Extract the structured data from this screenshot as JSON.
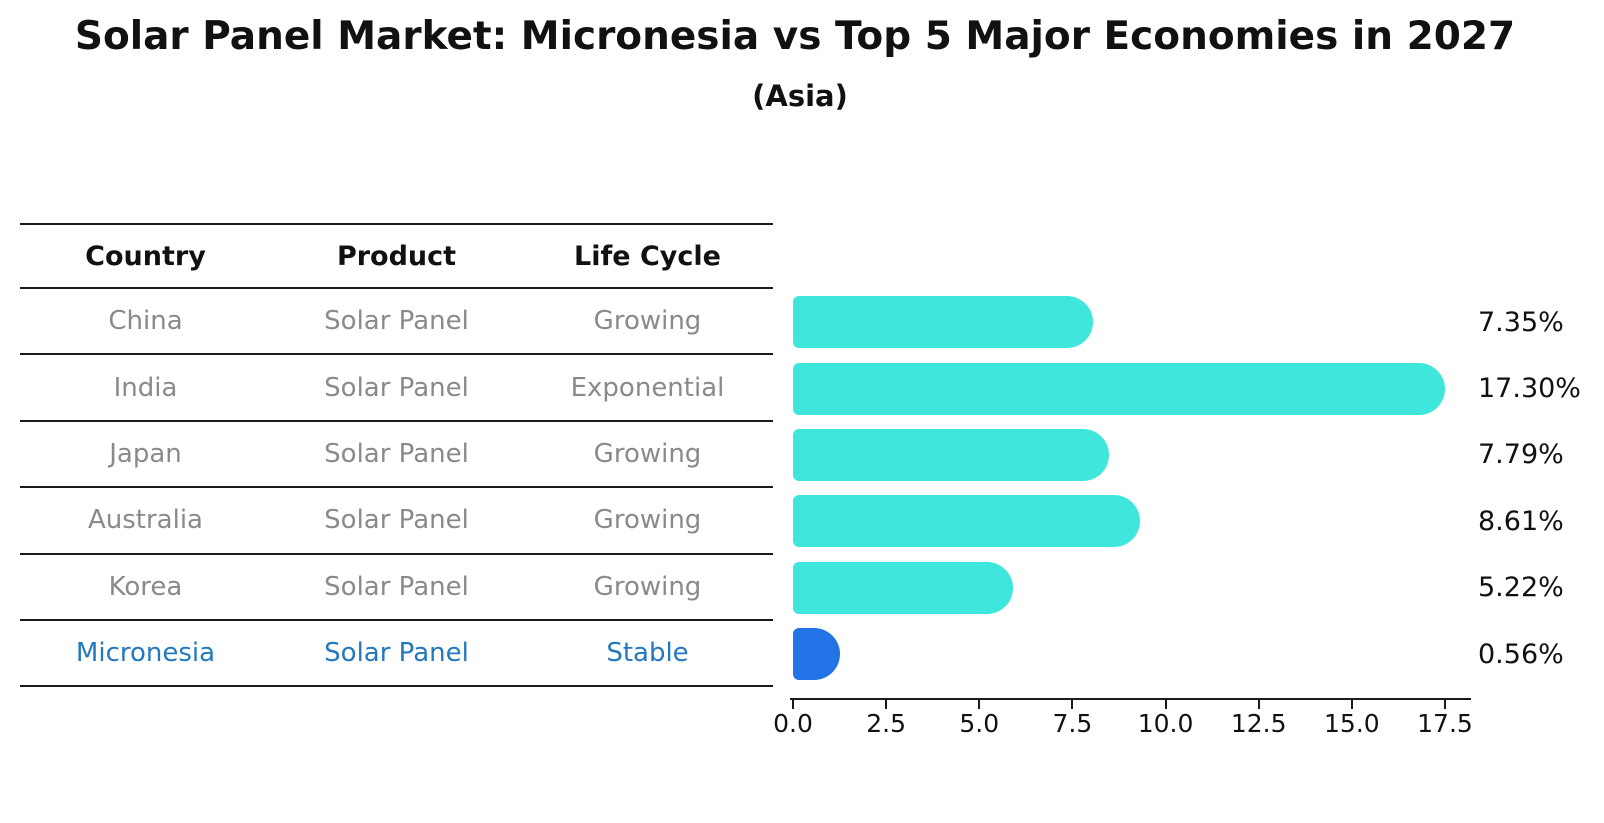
{
  "title": "Solar Panel Market: Micronesia vs Top 5 Major Economies in 2027",
  "subtitle": "(Asia)",
  "table": {
    "headers": [
      "Country",
      "Product",
      "Life Cycle"
    ],
    "rows": [
      {
        "country": "China",
        "product": "Solar Panel",
        "life_cycle": "Growing",
        "highlighted": false
      },
      {
        "country": "India",
        "product": "Solar Panel",
        "life_cycle": "Exponential",
        "highlighted": false
      },
      {
        "country": "Japan",
        "product": "Solar Panel",
        "life_cycle": "Growing",
        "highlighted": false
      },
      {
        "country": "Australia",
        "product": "Solar Panel",
        "life_cycle": "Growing",
        "highlighted": false
      },
      {
        "country": "Korea",
        "product": "Solar Panel",
        "life_cycle": "Growing",
        "highlighted": false
      },
      {
        "country": "Micronesia",
        "product": "Solar Panel",
        "life_cycle": "Stable",
        "highlighted": true
      }
    ]
  },
  "chart_data": {
    "type": "bar",
    "orientation": "horizontal",
    "title": "Solar Panel Market: Micronesia vs Top 5 Major Economies in 2027",
    "subtitle": "(Asia)",
    "categories": [
      "China",
      "India",
      "Japan",
      "Australia",
      "Korea",
      "Micronesia"
    ],
    "values": [
      7.35,
      17.3,
      7.79,
      8.61,
      5.22,
      0.56
    ],
    "value_labels": [
      "7.35%",
      "17.30%",
      "7.79%",
      "8.61%",
      "5.22%",
      "0.56%"
    ],
    "unit": "%",
    "xlim": [
      0,
      17.5
    ],
    "xticks": [
      "0.0",
      "2.5",
      "5.0",
      "7.5",
      "10.0",
      "12.5",
      "15.0",
      "17.5"
    ],
    "grid": false,
    "legend": false,
    "highlight_index": 5,
    "bar_colors": {
      "default": "#3fe6db",
      "highlight": "#2173e6"
    }
  },
  "colors": {
    "background": "#ffffff",
    "title_text": "#111111",
    "table_text": "#8a8a8a",
    "highlight_text": "#2478be",
    "bar_default": "#3fe6db",
    "bar_highlight": "#2173e6",
    "axis": "#1a1a1a"
  }
}
